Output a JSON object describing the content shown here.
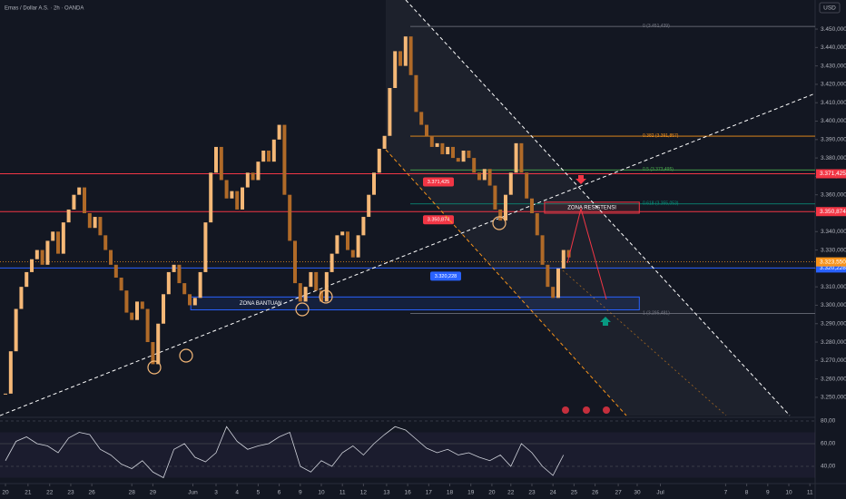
{
  "chart_data": {
    "type": "candlestick",
    "title": "Emas / Dollar A.S. · 2h · OANDA",
    "currency": "USD",
    "up_color": "#f5b877",
    "down_color": "#b06a28",
    "x": [
      0,
      0.25,
      0.5,
      0.75,
      1,
      1.25,
      1.5,
      1.75,
      2,
      2.25,
      2.5,
      2.75,
      3,
      3.25,
      3.5,
      3.75,
      4,
      4.25,
      4.5,
      4.75,
      5,
      5.25,
      5.5,
      5.75,
      6,
      6.25,
      6.5,
      6.75,
      7,
      7.25,
      7.5,
      7.75,
      8,
      8.25,
      8.5,
      8.75,
      9,
      9.25,
      9.5,
      9.75,
      10,
      10.25,
      10.5,
      10.75,
      11,
      11.25,
      11.5,
      11.75,
      12,
      12.25,
      12.5,
      12.75,
      13,
      13.25,
      13.5,
      13.75,
      14,
      14.25,
      14.5,
      14.75,
      15,
      15.25,
      15.5,
      15.75,
      16,
      16.25,
      16.5,
      16.75,
      17,
      17.25,
      17.5,
      17.75,
      18,
      18.25,
      18.5,
      18.75,
      19,
      19.25,
      19.5,
      19.75,
      20,
      20.25,
      20.5,
      20.75,
      21,
      21.25,
      21.5,
      21.75,
      22,
      22.25,
      22.5,
      22.75,
      23,
      23.25,
      23.5,
      23.75,
      24,
      24.25,
      24.5,
      24.75,
      25,
      25.25,
      25.5,
      25.75,
      26,
      26.25,
      26.5,
      26.75
    ],
    "values": [
      3252,
      3275,
      3298,
      3310,
      3318,
      3325,
      3330,
      3322,
      3335,
      3340,
      3328,
      3345,
      3352,
      3360,
      3364,
      3350,
      3342,
      3348,
      3338,
      3330,
      3322,
      3315,
      3308,
      3296,
      3292,
      3302,
      3298,
      3280,
      3268,
      3290,
      3306,
      3318,
      3322,
      3312,
      3306,
      3300,
      3304,
      3318,
      3345,
      3372,
      3386,
      3368,
      3358,
      3362,
      3352,
      3364,
      3372,
      3368,
      3378,
      3384,
      3378,
      3390,
      3398,
      3360,
      3335,
      3312,
      3302,
      3310,
      3318,
      3308,
      3302,
      3318,
      3328,
      3338,
      3340,
      3330,
      3326,
      3338,
      3348,
      3360,
      3372,
      3385,
      3392,
      3418,
      3438,
      3430,
      3446,
      3425,
      3405,
      3398,
      3392,
      3386,
      3388,
      3382,
      3386,
      3380,
      3378,
      3384,
      3380,
      3372,
      3368,
      3374,
      3365,
      3352,
      3346,
      3360,
      3372,
      3388,
      3372,
      3358,
      3350,
      3338,
      3322,
      3310,
      3304,
      3320,
      3330,
      3326
    ],
    "xlim": [
      -0.26,
      38.45
    ],
    "xticks": [
      {
        "value": 0,
        "label": "20"
      },
      {
        "value": 1.07,
        "label": "21"
      },
      {
        "value": 2.1,
        "label": "22"
      },
      {
        "value": 3.1,
        "label": "23"
      },
      {
        "value": 4.1,
        "label": "26"
      },
      {
        "value": 6,
        "label": "28"
      },
      {
        "value": 7,
        "label": "29"
      },
      {
        "value": 8.9,
        "label": "Jun"
      },
      {
        "value": 10,
        "label": "3"
      },
      {
        "value": 11,
        "label": "4"
      },
      {
        "value": 12,
        "label": "5"
      },
      {
        "value": 13,
        "label": "6"
      },
      {
        "value": 14,
        "label": "9"
      },
      {
        "value": 15,
        "label": "10"
      },
      {
        "value": 16,
        "label": "11"
      },
      {
        "value": 17,
        "label": "12"
      },
      {
        "value": 18.1,
        "label": "13"
      },
      {
        "value": 19.1,
        "label": "16"
      },
      {
        "value": 20.1,
        "label": "17"
      },
      {
        "value": 21.1,
        "label": "18"
      },
      {
        "value": 22.1,
        "label": "19"
      },
      {
        "value": 23.1,
        "label": "20"
      },
      {
        "value": 24,
        "label": "22"
      },
      {
        "value": 25,
        "label": "23"
      },
      {
        "value": 26,
        "label": "24"
      },
      {
        "value": 27,
        "label": "25"
      },
      {
        "value": 28,
        "label": "26"
      },
      {
        "value": 29.1,
        "label": "27"
      },
      {
        "value": 30,
        "label": "30"
      },
      {
        "value": 31.1,
        "label": "Jul"
      },
      {
        "value": 34.2,
        "label": "7"
      },
      {
        "value": 35.2,
        "label": "8"
      },
      {
        "value": 36.2,
        "label": "9"
      },
      {
        "value": 37.2,
        "label": "10"
      },
      {
        "value": 38.2,
        "label": "11"
      }
    ],
    "ylim": [
      3240.1,
      3465.8
    ],
    "yticks": [
      {
        "value": 3450,
        "label": "3.450,000"
      },
      {
        "value": 3440,
        "label": "3.440,000"
      },
      {
        "value": 3430,
        "label": "3.430,000"
      },
      {
        "value": 3420,
        "label": "3.420,000"
      },
      {
        "value": 3410,
        "label": "3.410,000"
      },
      {
        "value": 3400,
        "label": "3.400,000"
      },
      {
        "value": 3390,
        "label": "3.390,000"
      },
      {
        "value": 3380,
        "label": "3.380,000"
      },
      {
        "value": 3370,
        "label": "3.370,000"
      },
      {
        "value": 3360,
        "label": "3.360,000"
      },
      {
        "value": 3350,
        "label": "3.350,000"
      },
      {
        "value": 3340,
        "label": "3.340,000"
      },
      {
        "value": 3330,
        "label": "3.330,000"
      },
      {
        "value": 3320,
        "label": "3.320,000"
      },
      {
        "value": 3310,
        "label": "3.310,000"
      },
      {
        "value": 3300,
        "label": "3.300,000"
      },
      {
        "value": 3290,
        "label": "3.290,000"
      },
      {
        "value": 3280,
        "label": "3.280,000"
      },
      {
        "value": 3270,
        "label": "3.270,000"
      },
      {
        "value": 3260,
        "label": "3.260,000"
      },
      {
        "value": 3250,
        "label": "3.250,000"
      }
    ],
    "levels": [
      {
        "value": 3371.425,
        "label": "3.371,425",
        "color": "#f23645"
      },
      {
        "value": 3350.874,
        "label": "3.350,874",
        "color": "#f23645"
      },
      {
        "value": 3320.228,
        "label": "3.320,228",
        "color": "#2962ff"
      }
    ],
    "price_tag": {
      "value": 3323.55,
      "label": "3.323,550",
      "color": "#f7931a"
    },
    "fib": [
      {
        "value": 3451.439,
        "label": "0 (3.451,439)",
        "color": "#787b86"
      },
      {
        "value": 3391.857,
        "label": "0.382 (3.391,857)",
        "color": "#f7931a"
      },
      {
        "value": 3373.495,
        "label": "0.5 (3.373,495)",
        "color": "#4caf50"
      },
      {
        "value": 3355.053,
        "label": "0.618 (3.355,053)",
        "color": "#089981"
      },
      {
        "value": 3295.481,
        "label": "1 (3.295,481)",
        "color": "#787b86"
      }
    ],
    "zones": [
      {
        "label": "ZONA RESISTENSI",
        "top": 3356,
        "bottom": 3350,
        "x0": 25.6,
        "x1": 30.1,
        "color": "#f23645"
      },
      {
        "label": "ZONA BANTUAN",
        "top": 3304.5,
        "bottom": 3297.5,
        "x0": 8.8,
        "x1": 30.1,
        "color": "#2962ff"
      }
    ],
    "rsi": {
      "color": "#d1d4dc",
      "x": [
        0,
        0.5,
        1,
        1.5,
        2,
        2.5,
        3,
        3.5,
        4,
        4.5,
        5,
        5.5,
        6,
        6.5,
        7,
        7.5,
        8,
        8.5,
        9,
        9.5,
        10,
        10.5,
        11,
        11.5,
        12,
        12.5,
        13,
        13.5,
        14,
        14.5,
        15,
        15.5,
        16,
        16.5,
        17,
        17.5,
        18,
        18.5,
        19,
        19.5,
        20,
        20.5,
        21,
        21.5,
        22,
        22.5,
        23,
        23.5,
        24,
        24.5,
        25,
        25.5,
        26,
        26.5
      ],
      "values": [
        45,
        62,
        66,
        60,
        58,
        52,
        65,
        70,
        68,
        55,
        50,
        42,
        38,
        45,
        35,
        30,
        55,
        60,
        48,
        44,
        52,
        75,
        62,
        55,
        58,
        60,
        66,
        70,
        40,
        35,
        45,
        40,
        52,
        58,
        50,
        60,
        68,
        75,
        72,
        64,
        56,
        52,
        55,
        50,
        52,
        48,
        45,
        50,
        40,
        60,
        52,
        40,
        32,
        50
      ],
      "ylim": [
        27.2,
        81.6
      ],
      "yticks": [
        {
          "value": 80,
          "label": "80,00"
        },
        {
          "value": 60,
          "label": "60,00"
        },
        {
          "value": 40,
          "label": "40,00"
        }
      ]
    }
  }
}
